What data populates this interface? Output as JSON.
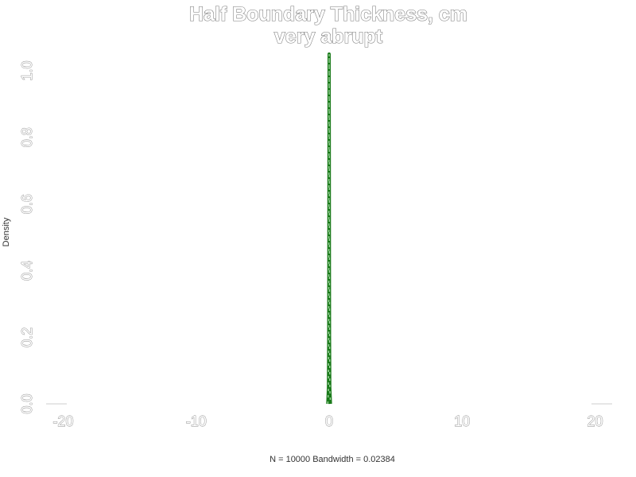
{
  "chart_data": {
    "type": "line",
    "title": "Half Boundary Thickness, cm",
    "subtitle": "very abrupt",
    "xlabel": "N = 10000   Bandwidth = 0.02384",
    "ylabel": "Density",
    "xlim": [
      -22,
      22
    ],
    "ylim": [
      0,
      1.05
    ],
    "x_ticks": [
      -20,
      -10,
      0,
      10,
      20
    ],
    "x_tick_labels": [
      "-20",
      "-10",
      "0",
      "10",
      "20"
    ],
    "y_ticks": [
      0,
      0.2,
      0.4,
      0.6,
      0.8,
      1.0
    ],
    "y_tick_labels": [
      "0.0",
      "0.2",
      "0.4",
      "0.6",
      "0.8",
      "1.0"
    ],
    "grid": false,
    "colors": {
      "density_line": "#1a7a1a",
      "baseline": "#cccccc",
      "text_outline": "#7a7a7a"
    },
    "series": [
      {
        "x": [
          -0.1,
          -0.05,
          -0.03,
          -0.02,
          -0.01,
          0.0,
          0.01,
          0.02,
          0.03,
          0.05,
          0.1
        ],
        "y": [
          0.0,
          0.05,
          0.2,
          0.45,
          0.8,
          1.05,
          0.8,
          0.45,
          0.2,
          0.05,
          0.0
        ]
      }
    ]
  }
}
